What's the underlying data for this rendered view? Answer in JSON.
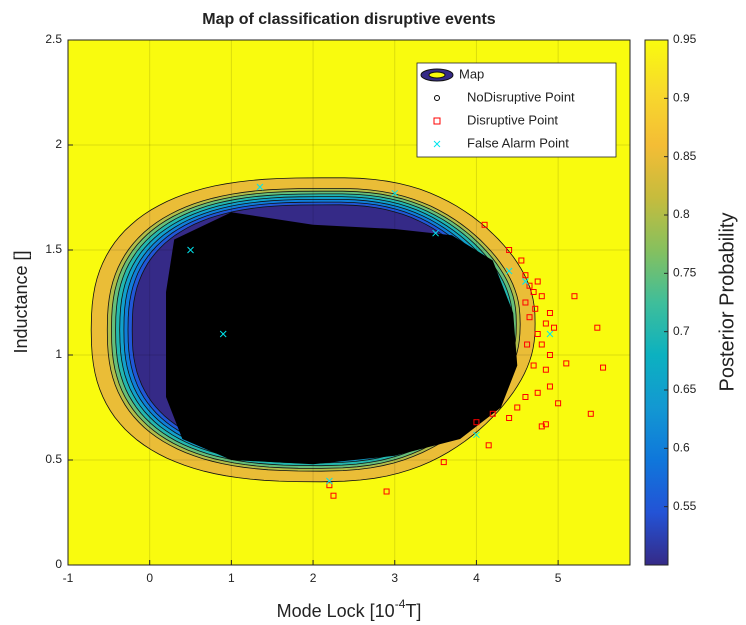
{
  "chart_data": {
    "type": "contour_scatter",
    "title": "Map of classification disruptive events",
    "xlabel_parts": [
      "Mode Lock [10",
      "-4",
      "T]"
    ],
    "ylabel": "Inductance []",
    "colorbar_label": "Posterior Probability",
    "xlim": [
      -1,
      5.88
    ],
    "ylim": [
      0,
      2.5
    ],
    "xticks": [
      -1,
      0,
      1,
      2,
      3,
      4,
      5
    ],
    "yticks": [
      0,
      0.5,
      1,
      1.5,
      2,
      2.5
    ],
    "clim": [
      0.5,
      0.95
    ],
    "cticks": [
      0.55,
      0.6,
      0.65,
      0.7,
      0.75,
      0.8,
      0.85,
      0.9,
      0.95
    ],
    "colormap": [
      "#352a87",
      "#2353d6",
      "#0f77db",
      "#1398d2",
      "#0cb1c0",
      "#3fbe9a",
      "#86c05e",
      "#c6bc3d",
      "#f4bd35",
      "#f8d92c",
      "#f9fb0e"
    ],
    "contour_levels": [
      0.9,
      0.85,
      0.8,
      0.75,
      0.7,
      0.65,
      0.6,
      0.55
    ],
    "legend_position": "upper right",
    "legend_map": "Map",
    "series": [
      {
        "name": "NoDisruptive Point",
        "color": "#000000",
        "marker": "region",
        "x": [
          0.3,
          1.0,
          2.0,
          3.0,
          3.7,
          4.2,
          4.45,
          4.5,
          4.3,
          3.8,
          3.0,
          2.0,
          1.0,
          0.4,
          0.2,
          0.2
        ],
        "y": [
          1.55,
          1.68,
          1.62,
          1.6,
          1.57,
          1.45,
          1.2,
          0.95,
          0.75,
          0.6,
          0.52,
          0.48,
          0.5,
          0.6,
          0.8,
          1.3
        ]
      },
      {
        "name": "Disruptive Point",
        "color": "#ff0000",
        "marker": "square",
        "x": [
          4.55,
          4.6,
          4.65,
          4.7,
          4.75,
          4.8,
          4.72,
          4.65,
          4.85,
          4.9,
          4.6,
          4.75,
          4.8,
          4.95,
          5.2,
          5.48,
          5.55,
          5.1,
          4.9,
          4.75,
          4.6,
          4.5,
          4.4,
          4.2,
          4.0,
          4.85,
          5.0,
          5.4,
          4.8,
          4.15,
          4.1,
          4.4,
          3.6,
          2.9,
          2.25,
          2.2,
          4.62,
          4.7,
          4.85,
          4.9
        ],
        "y": [
          1.45,
          1.38,
          1.33,
          1.3,
          1.35,
          1.28,
          1.22,
          1.18,
          1.15,
          1.2,
          1.25,
          1.1,
          1.05,
          1.13,
          1.28,
          1.13,
          0.94,
          0.96,
          0.85,
          0.82,
          0.8,
          0.75,
          0.7,
          0.72,
          0.68,
          0.67,
          0.77,
          0.72,
          0.66,
          0.57,
          1.62,
          1.5,
          0.49,
          0.35,
          0.33,
          0.38,
          1.05,
          0.95,
          0.93,
          1.0
        ]
      },
      {
        "name": "False Alarm Point",
        "color": "#00e5ee",
        "marker": "x",
        "x": [
          1.35,
          3.0,
          4.9,
          4.6,
          4.4,
          2.2,
          0.9,
          4.0,
          0.5,
          3.5
        ],
        "y": [
          1.8,
          1.77,
          1.1,
          1.35,
          1.4,
          0.4,
          1.1,
          0.62,
          1.5,
          1.58
        ]
      }
    ]
  }
}
